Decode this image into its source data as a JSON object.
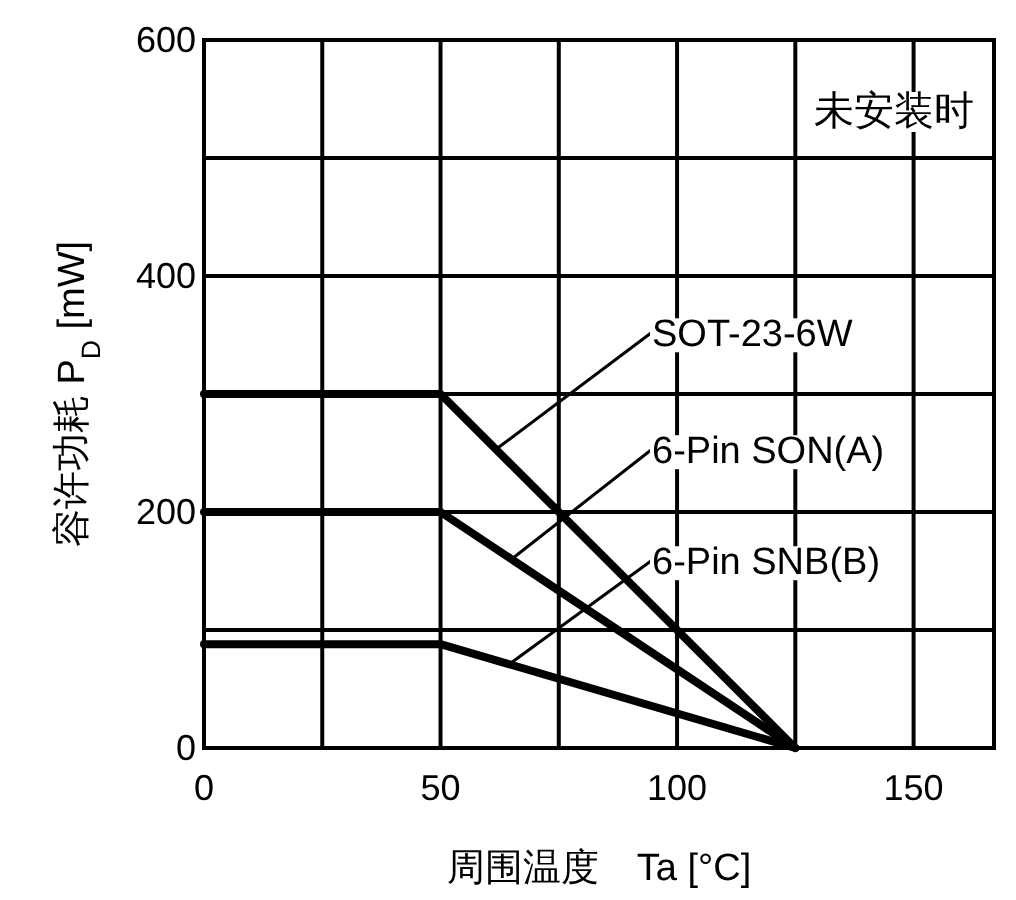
{
  "chart_data": {
    "type": "line",
    "xlabel": "周围温度　Ta [°C]",
    "ylabel": "容许功耗  P$_{D}$ [mW]",
    "xlim": [
      0,
      167
    ],
    "ylim": [
      0,
      600
    ],
    "xticks": [
      0,
      {
        "value": 25,
        "label": null
      },
      50,
      {
        "value": 75,
        "label": null
      },
      100,
      {
        "value": 125,
        "label": null
      },
      150
    ],
    "yticks": [
      0,
      {
        "value": 100,
        "label": null
      },
      200,
      {
        "value": 300,
        "label": null
      },
      400,
      {
        "value": 500,
        "label": null
      },
      600
    ],
    "grid": true,
    "series": [
      {
        "color": "#000000",
        "x": [
          0,
          50,
          125
        ],
        "values": [
          300,
          300,
          0
        ]
      },
      {
        "color": "#000000",
        "x": [
          0,
          50,
          125
        ],
        "values": [
          200,
          200,
          0
        ]
      },
      {
        "color": "#000000",
        "x": [
          0,
          50,
          125
        ],
        "values": [
          88,
          88,
          0
        ]
      }
    ],
    "annotations": [
      "未安装时",
      {
        "text": "SOT-23-6W",
        "x": 62,
        "y": 254
      },
      {
        "text": "6-Pin SON(A)",
        "x": 65,
        "y": 160
      },
      {
        "text": "6-Pin SNB(B)",
        "x": 64.5,
        "y": 71
      }
    ]
  }
}
